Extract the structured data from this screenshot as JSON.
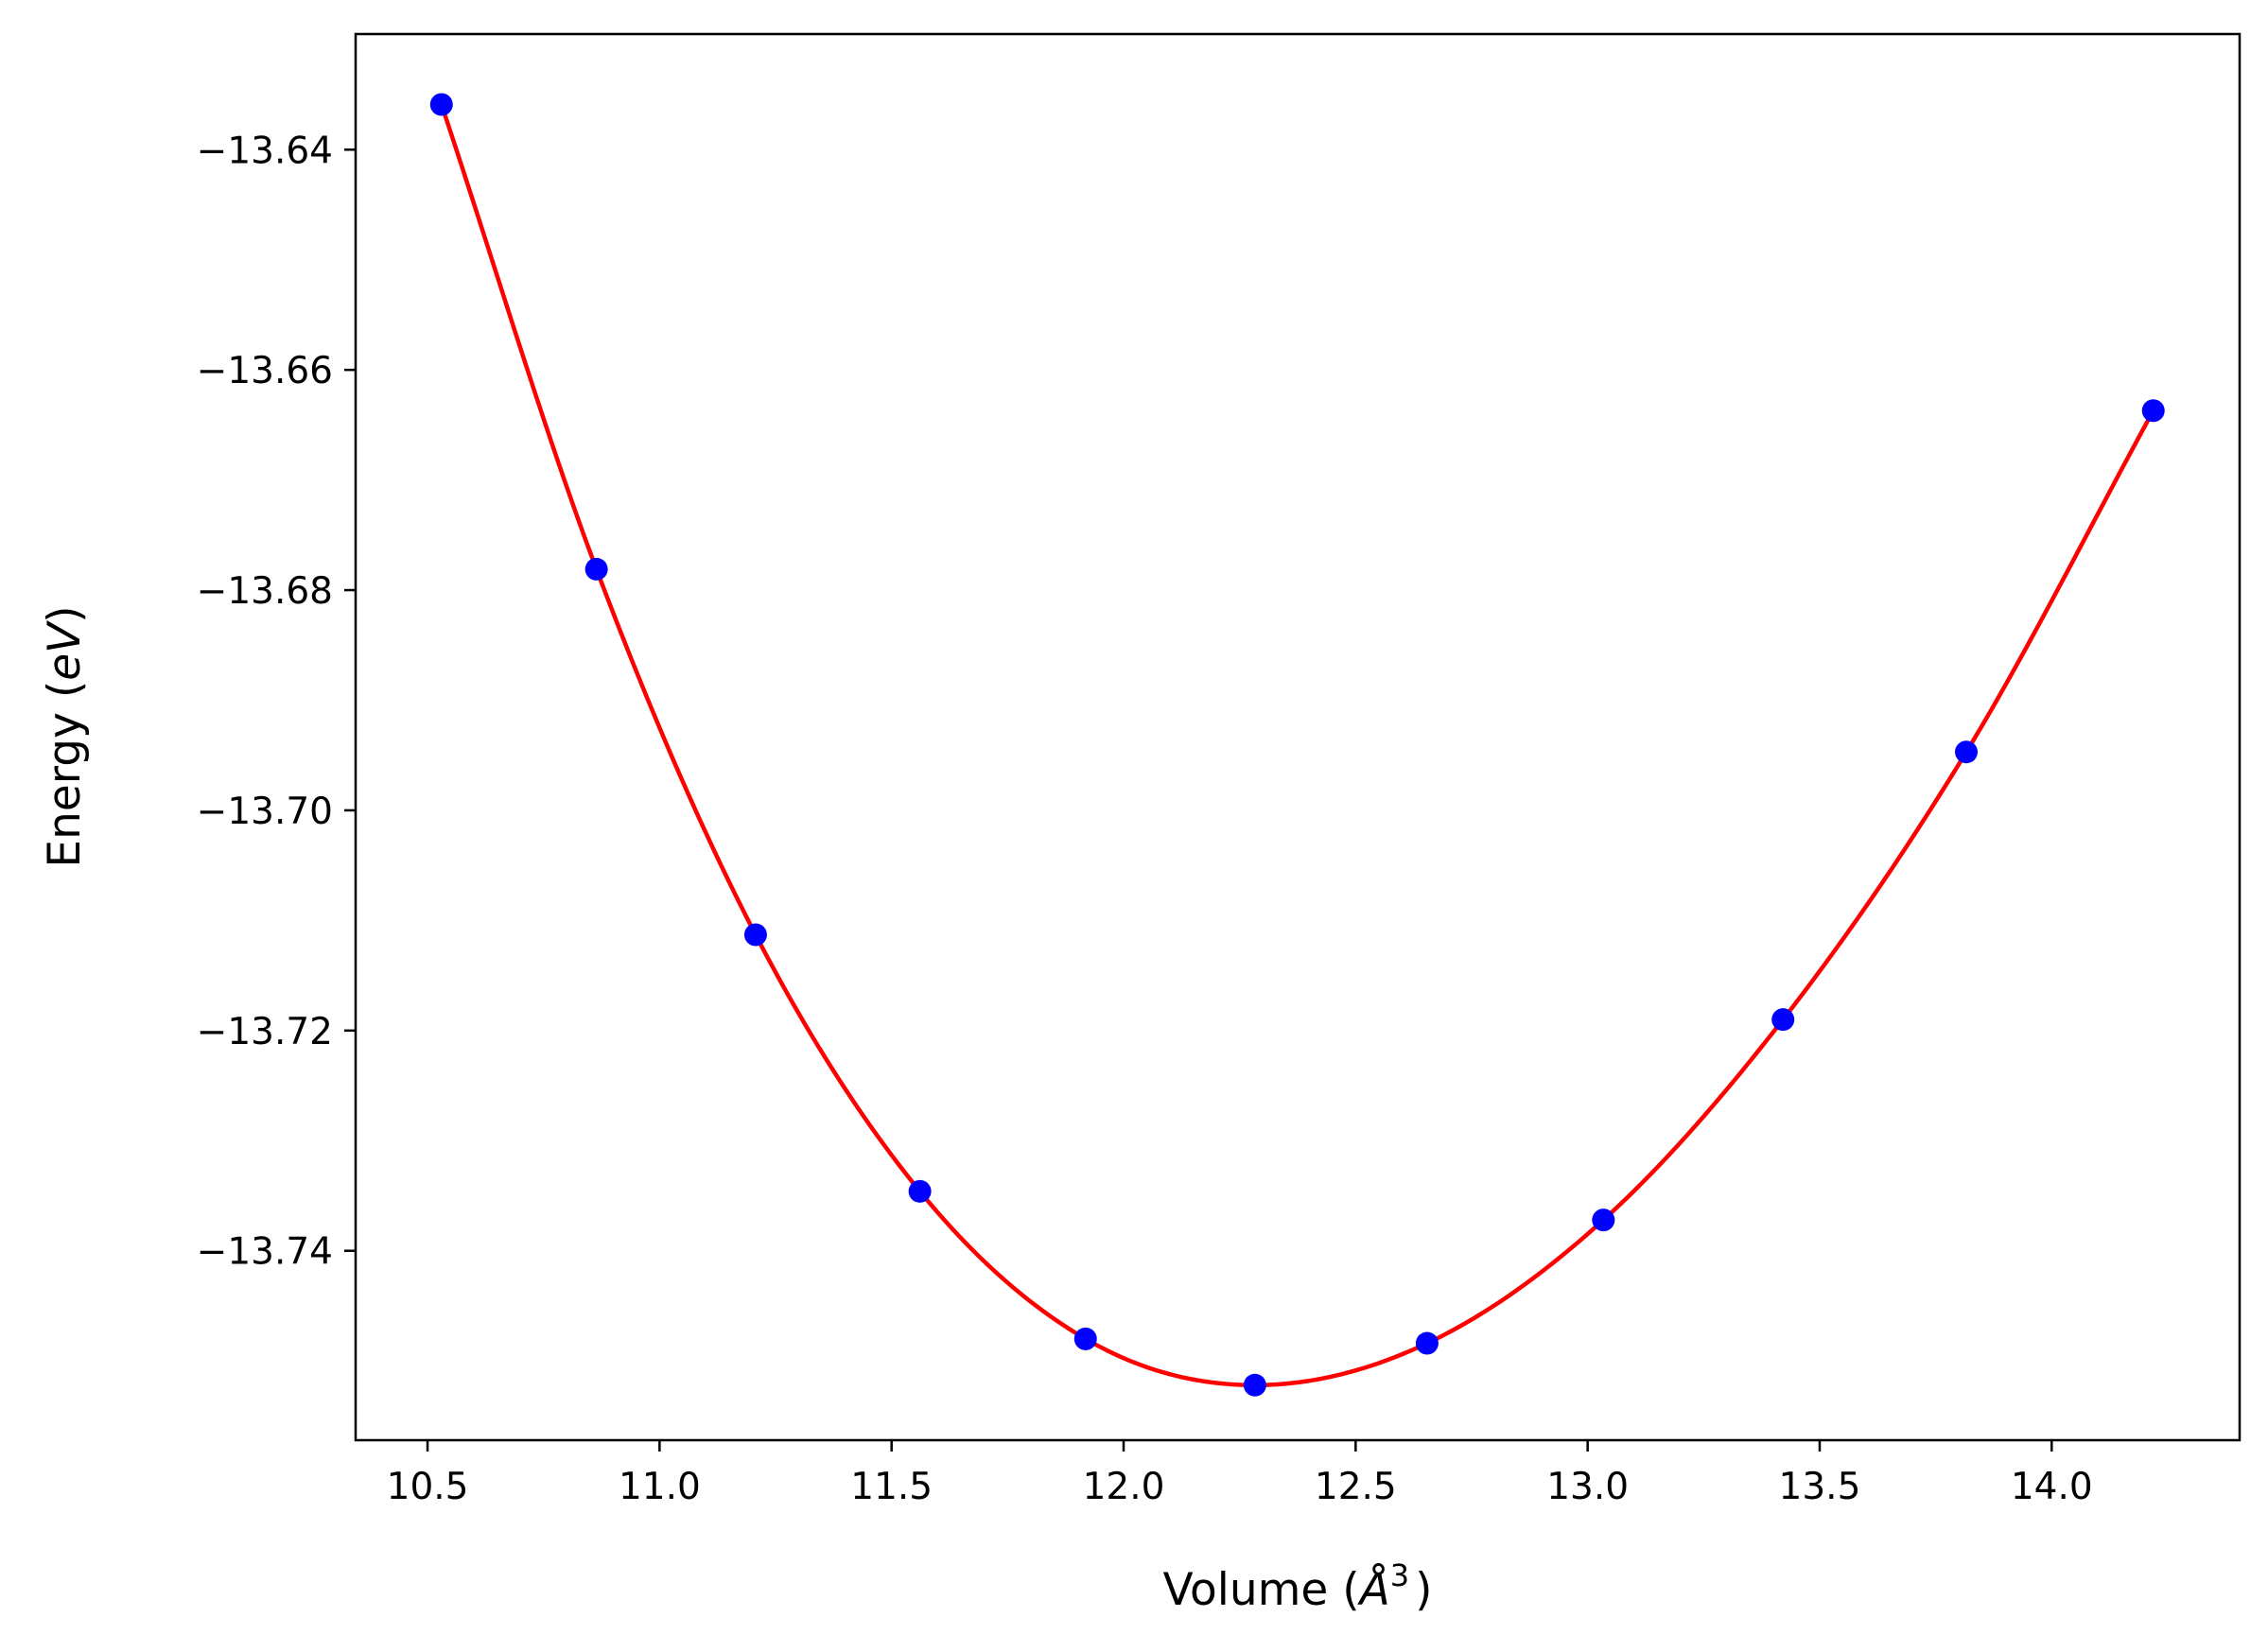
{
  "chart_data": {
    "type": "scatter",
    "title": "",
    "xlabel": {
      "prefix": "Volume (",
      "symbol": "Å",
      "sup": "3",
      "suffix": ")"
    },
    "ylabel": {
      "prefix": "Energy (",
      "symbol": "eV",
      "suffix": ")"
    },
    "xlim": [
      10.345,
      14.405
    ],
    "ylim": [
      -13.7572,
      -13.6295
    ],
    "x_ticks": [
      10.5,
      11.0,
      11.5,
      12.0,
      12.5,
      13.0,
      13.5,
      14.0
    ],
    "x_tick_labels": [
      "10.5",
      "11.0",
      "11.5",
      "12.0",
      "12.5",
      "13.0",
      "13.5",
      "14.0"
    ],
    "y_ticks": [
      -13.64,
      -13.66,
      -13.68,
      -13.7,
      -13.72,
      -13.74
    ],
    "y_tick_labels": [
      "−13.64",
      "−13.66",
      "−13.68",
      "−13.70",
      "−13.72",
      "−13.74"
    ],
    "grid": false,
    "series": [
      {
        "type": "scatter",
        "color": "#0000ff",
        "x": [
          10.53,
          10.864,
          11.207,
          11.561,
          11.918,
          12.283,
          12.654,
          13.034,
          13.421,
          13.816,
          14.219
        ],
        "y": [
          -13.6359,
          -13.6781,
          -13.7113,
          -13.7346,
          -13.748,
          -13.7522,
          -13.7484,
          -13.7372,
          -13.719,
          -13.6947,
          -13.6637
        ]
      },
      {
        "type": "line",
        "color": "#ff0000",
        "fit_points": [
          [
            10.53,
            -13.6359
          ],
          [
            10.864,
            -13.6781
          ],
          [
            11.207,
            -13.7113
          ],
          [
            11.561,
            -13.7346
          ],
          [
            11.918,
            -13.748
          ],
          [
            12.283,
            -13.7522
          ],
          [
            12.654,
            -13.7484
          ],
          [
            13.034,
            -13.7372
          ],
          [
            13.421,
            -13.719
          ],
          [
            13.816,
            -13.6947
          ],
          [
            14.219,
            -13.6637
          ]
        ]
      }
    ]
  }
}
